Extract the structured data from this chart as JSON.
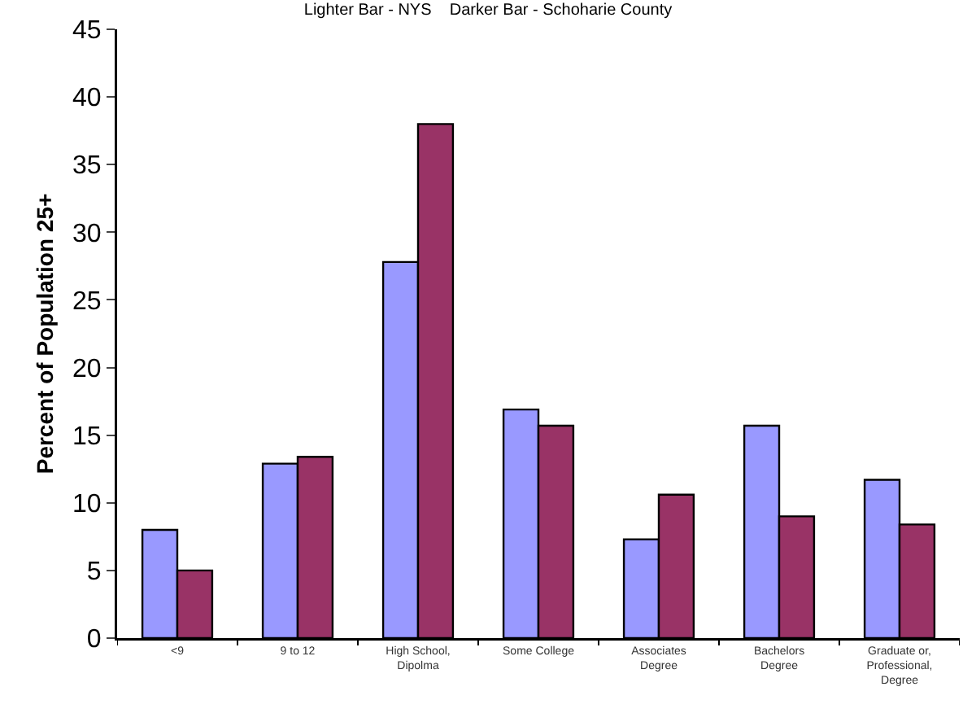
{
  "chart_data": {
    "type": "bar",
    "title": "Lighter Bar - NYS    Darker Bar - Schoharie County",
    "ylabel": "Percent of Population 25+",
    "categories": [
      "<9",
      "9 to 12",
      "High School,\nDipolma",
      "Some College",
      "Associates\nDegree",
      "Bachelors\nDegree",
      "Graduate or,\nProfessional,\nDegree"
    ],
    "series": [
      {
        "color": "#9999ff",
        "values": [
          8.0,
          12.9,
          27.8,
          16.9,
          7.3,
          15.7,
          11.7
        ]
      },
      {
        "color": "#993366",
        "values": [
          5.0,
          13.4,
          38.0,
          15.7,
          10.6,
          9.0,
          8.4
        ]
      }
    ],
    "ylim": [
      0,
      45
    ],
    "yticks": [
      0,
      5,
      10,
      15,
      20,
      25,
      30,
      35,
      40,
      45
    ]
  }
}
